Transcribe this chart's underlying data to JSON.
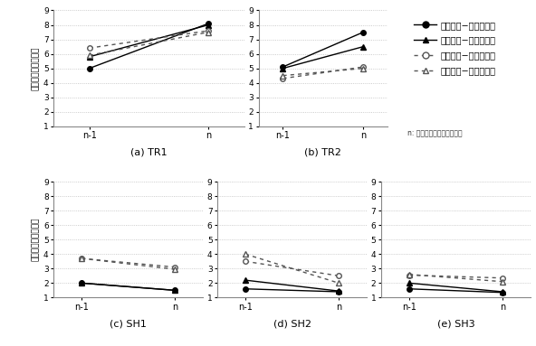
{
  "subplots": [
    {
      "title": "(a) TR1",
      "series": [
        {
          "label": "弁別性高-確定情報有",
          "y": [
            5.0,
            8.1
          ],
          "linestyle": "-",
          "marker": "o",
          "color": "#000000",
          "markerfill": "#000000"
        },
        {
          "label": "弁別性高-確定情報無",
          "y": [
            5.8,
            8.0
          ],
          "linestyle": "-",
          "marker": "^",
          "color": "#000000",
          "markerfill": "#000000"
        },
        {
          "label": "弁別性低-確定情報有",
          "y": [
            6.4,
            7.6
          ],
          "linestyle": ":",
          "marker": "o",
          "color": "#555555",
          "markerfill": "white"
        },
        {
          "label": "弁別性低-確定情報無",
          "y": [
            5.9,
            7.5
          ],
          "linestyle": ":",
          "marker": "^",
          "color": "#555555",
          "markerfill": "white"
        }
      ],
      "ylim": [
        1,
        9
      ],
      "yticks": [
        1,
        2,
        3,
        4,
        5,
        6,
        7,
        8,
        9
      ]
    },
    {
      "title": "(b) TR2",
      "series": [
        {
          "label": "弁別性高-確定情報有",
          "y": [
            5.1,
            7.5
          ],
          "linestyle": "-",
          "marker": "o",
          "color": "#000000",
          "markerfill": "#000000"
        },
        {
          "label": "弁別性高-確定情報無",
          "y": [
            5.0,
            6.5
          ],
          "linestyle": "-",
          "marker": "^",
          "color": "#000000",
          "markerfill": "#000000"
        },
        {
          "label": "弁別性低-確定情報有",
          "y": [
            4.3,
            5.1
          ],
          "linestyle": ":",
          "marker": "o",
          "color": "#555555",
          "markerfill": "white"
        },
        {
          "label": "弁別性低-確定情報無",
          "y": [
            4.5,
            5.0
          ],
          "linestyle": ":",
          "marker": "^",
          "color": "#555555",
          "markerfill": "white"
        }
      ],
      "ylim": [
        1,
        9
      ],
      "yticks": [
        1,
        2,
        3,
        4,
        5,
        6,
        7,
        8,
        9
      ]
    },
    {
      "title": "(c) SH1",
      "series": [
        {
          "label": "弁別性高-確定情報有",
          "y": [
            2.0,
            1.5
          ],
          "linestyle": "-",
          "marker": "o",
          "color": "#000000",
          "markerfill": "#000000"
        },
        {
          "label": "弁別性高-確定情報無",
          "y": [
            2.0,
            1.5
          ],
          "linestyle": "-",
          "marker": "^",
          "color": "#000000",
          "markerfill": "#000000"
        },
        {
          "label": "弁別性低-確定情報有",
          "y": [
            3.7,
            3.1
          ],
          "linestyle": ":",
          "marker": "o",
          "color": "#555555",
          "markerfill": "white"
        },
        {
          "label": "弁別性低-確定情報無",
          "y": [
            3.7,
            2.95
          ],
          "linestyle": ":",
          "marker": "^",
          "color": "#555555",
          "markerfill": "white"
        }
      ],
      "ylim": [
        1,
        9
      ],
      "yticks": [
        1,
        2,
        3,
        4,
        5,
        6,
        7,
        8,
        9
      ]
    },
    {
      "title": "(d) SH2",
      "series": [
        {
          "label": "弁別性高-確定情報有",
          "y": [
            1.6,
            1.4
          ],
          "linestyle": "-",
          "marker": "o",
          "color": "#000000",
          "markerfill": "#000000"
        },
        {
          "label": "弁別性高-確定情報無",
          "y": [
            2.2,
            1.45
          ],
          "linestyle": "-",
          "marker": "^",
          "color": "#000000",
          "markerfill": "#000000"
        },
        {
          "label": "弁別性低-確定情報有",
          "y": [
            3.5,
            2.5
          ],
          "linestyle": ":",
          "marker": "o",
          "color": "#555555",
          "markerfill": "white"
        },
        {
          "label": "弁別性低-確定情報無",
          "y": [
            4.0,
            2.0
          ],
          "linestyle": ":",
          "marker": "^",
          "color": "#555555",
          "markerfill": "white"
        }
      ],
      "ylim": [
        1,
        9
      ],
      "yticks": [
        1,
        2,
        3,
        4,
        5,
        6,
        7,
        8,
        9
      ]
    },
    {
      "title": "(e) SH3",
      "series": [
        {
          "label": "弁別性高-確定情報有",
          "y": [
            1.6,
            1.35
          ],
          "linestyle": "-",
          "marker": "o",
          "color": "#000000",
          "markerfill": "#000000"
        },
        {
          "label": "弁別性高-確定情報無",
          "y": [
            2.0,
            1.4
          ],
          "linestyle": "-",
          "marker": "^",
          "color": "#000000",
          "markerfill": "#000000"
        },
        {
          "label": "弁別性低-確定情報有",
          "y": [
            2.55,
            2.35
          ],
          "linestyle": ":",
          "marker": "o",
          "color": "#555555",
          "markerfill": "white"
        },
        {
          "label": "弁別性低-確定情報無",
          "y": [
            2.6,
            2.1
          ],
          "linestyle": ":",
          "marker": "^",
          "color": "#555555",
          "markerfill": "white"
        }
      ],
      "ylim": [
        1,
        9
      ],
      "yticks": [
        1,
        2,
        3,
        4,
        5,
        6,
        7,
        8,
        9
      ]
    }
  ],
  "legend_labels": [
    "弁別性高−確定情報有",
    "弁別性高−確定情報無",
    "弁別性低−確定情報有",
    "弁別性低−確定情報無"
  ],
  "ylabel": "トリック有無評定値",
  "xlabel_note": "n: ターゲット位置特定試行",
  "background_color": "#ffffff",
  "grid_color": "#bbbbbb"
}
